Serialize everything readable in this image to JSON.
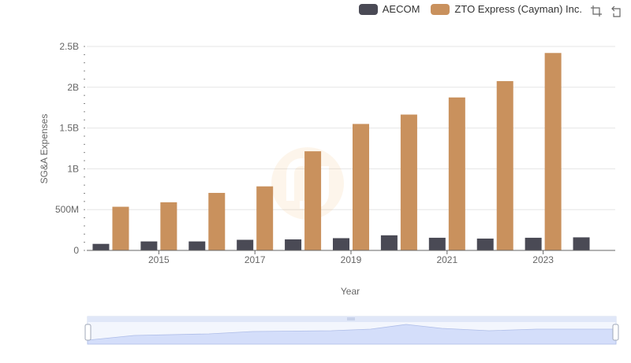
{
  "chart_data": {
    "type": "bar",
    "categories": [
      "2014",
      "2015",
      "2016",
      "2017",
      "2018",
      "2019",
      "2020",
      "2021",
      "2022",
      "2023",
      "2024"
    ],
    "x_tick_labels": [
      "2015",
      "2017",
      "2019",
      "2021",
      "2023"
    ],
    "y_tick_labels": [
      "0",
      "500M",
      "1B",
      "1.5B",
      "2B",
      "2.5B"
    ],
    "y_tick_values": [
      0,
      500000000,
      1000000000,
      1500000000,
      2000000000,
      2500000000
    ],
    "ylim": [
      0,
      2500000000
    ],
    "xlabel": "Year",
    "ylabel": "SG&A Expenses",
    "legend_position": "top-right",
    "grid": true,
    "series": [
      {
        "name": "AECOM",
        "color": "#4a4a55",
        "values": [
          80000000,
          110000000,
          110000000,
          130000000,
          135000000,
          150000000,
          185000000,
          155000000,
          145000000,
          155000000,
          160000000
        ]
      },
      {
        "name": "ZTO Express (Cayman) Inc.",
        "color": "#c9915d",
        "values": [
          535000000,
          590000000,
          705000000,
          785000000,
          1215000000,
          1550000000,
          1665000000,
          1875000000,
          2075000000,
          2420000000,
          null
        ]
      }
    ]
  },
  "icons": {
    "zoom": "zoom-icon",
    "reset": "restore-icon"
  }
}
